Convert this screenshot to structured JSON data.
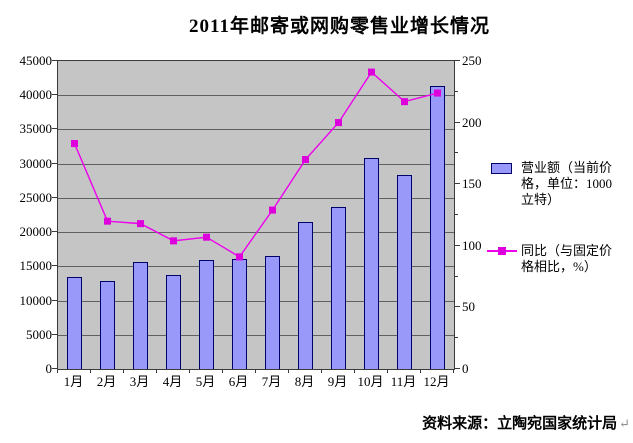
{
  "title": "2011年邮寄或网购零售业增长情况",
  "source": {
    "label": "资料来源：立陶宛国家统计局",
    "return_mark": "↵"
  },
  "legend": {
    "bar_label": "营业额（当前价\n格，单位：1000\n立特）",
    "line_label": "同比（与固定价\n格相比，%）"
  },
  "colors": {
    "page_bg": "#ffffff",
    "plot_bg": "#c5c5c5",
    "plot_border": "#3a3a3a",
    "gridline": "#606060",
    "bar_fill": "#9999fa",
    "bar_border": "#00006b",
    "line": "#ee00ee",
    "marker": "#dd00dd",
    "return_mark": "#8a8f98"
  },
  "chart_data": {
    "type": "combo (bar + line)",
    "title": "2011年邮寄或网购零售业增长情况",
    "categories": [
      "1月",
      "2月",
      "3月",
      "4月",
      "5月",
      "6月",
      "7月",
      "8月",
      "9月",
      "10月",
      "11月",
      "12月"
    ],
    "series": [
      {
        "name": "营业额（当前价格，单位：1000立特）",
        "type": "bar",
        "axis": "left",
        "values": [
          13500,
          12900,
          15700,
          13700,
          15900,
          16100,
          16500,
          21500,
          23600,
          30800,
          28400,
          41300
        ]
      },
      {
        "name": "同比（与固定价格相比，%）",
        "type": "line",
        "axis": "right",
        "values": [
          183,
          120,
          118,
          104,
          107,
          91,
          129,
          170,
          200,
          241,
          217,
          224
        ]
      }
    ],
    "left_axis": {
      "min": 0,
      "max": 45000,
      "step": 5000
    },
    "right_axis": {
      "min": 0,
      "max": 250,
      "step": 50,
      "minor_step": 25
    },
    "legend_position": "right",
    "grid": true,
    "plot_background": "gray"
  }
}
